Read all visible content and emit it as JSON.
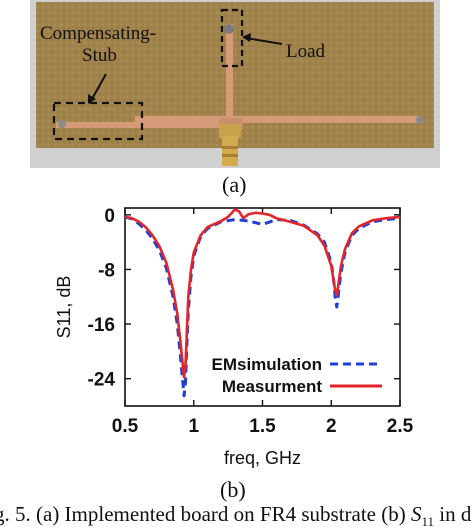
{
  "photo": {
    "labels": {
      "stub_line1": "Compensating-",
      "stub_line2": "Stub",
      "load": "Load"
    },
    "colors": {
      "board": "#a98a52",
      "trace": "#d09070",
      "frame": "#cfcfcf"
    }
  },
  "subfig_a": "(a)",
  "subfig_b": "(b)",
  "chart_data": {
    "type": "line",
    "xlabel": "freq, GHz",
    "ylabel": "S11, dB",
    "xlim": [
      0.5,
      2.5
    ],
    "ylim": [
      -28,
      1
    ],
    "x_ticks": [
      "0.5",
      "1",
      "1.5",
      "2",
      "2.5"
    ],
    "y_ticks": [
      "0",
      "-8",
      "-16",
      "-24"
    ],
    "legend_position": "bottom-right",
    "grid": false,
    "series": [
      {
        "name": "EMsimulation",
        "color": "#1f3fd6",
        "style": "dashed",
        "x": [
          0.5,
          0.55,
          0.6,
          0.65,
          0.7,
          0.75,
          0.8,
          0.85,
          0.88,
          0.9,
          0.92,
          0.93,
          0.94,
          0.95,
          0.96,
          0.98,
          1.0,
          1.05,
          1.1,
          1.2,
          1.3,
          1.4,
          1.5,
          1.6,
          1.7,
          1.8,
          1.9,
          1.95,
          2.0,
          2.02,
          2.03,
          2.04,
          2.05,
          2.07,
          2.1,
          2.15,
          2.2,
          2.3,
          2.4,
          2.5
        ],
        "y": [
          -0.3,
          -0.6,
          -1.3,
          -2.2,
          -3.5,
          -5.2,
          -7.8,
          -12.0,
          -16.0,
          -20.0,
          -24.5,
          -26.5,
          -24.5,
          -19.0,
          -14.0,
          -9.0,
          -6.0,
          -3.2,
          -2.0,
          -1.0,
          -0.7,
          -0.9,
          -1.4,
          -0.7,
          -0.8,
          -1.5,
          -2.8,
          -4.0,
          -7.0,
          -10.0,
          -12.5,
          -13.5,
          -12.0,
          -8.5,
          -5.5,
          -3.0,
          -2.0,
          -1.0,
          -0.7,
          -0.5
        ]
      },
      {
        "name": "Measurment",
        "color": "#e0262b",
        "style": "solid",
        "x": [
          0.5,
          0.55,
          0.6,
          0.65,
          0.7,
          0.75,
          0.8,
          0.85,
          0.88,
          0.9,
          0.92,
          0.93,
          0.94,
          0.95,
          0.96,
          0.98,
          1.0,
          1.05,
          1.1,
          1.2,
          1.25,
          1.3,
          1.33,
          1.36,
          1.4,
          1.45,
          1.5,
          1.55,
          1.6,
          1.7,
          1.8,
          1.9,
          1.95,
          2.0,
          2.02,
          2.03,
          2.04,
          2.05,
          2.07,
          2.1,
          2.15,
          2.2,
          2.3,
          2.4,
          2.5
        ],
        "y": [
          -0.3,
          -0.5,
          -1.0,
          -1.8,
          -3.0,
          -4.6,
          -7.0,
          -11.0,
          -14.5,
          -18.0,
          -22.0,
          -23.8,
          -22.0,
          -17.0,
          -12.0,
          -8.0,
          -5.5,
          -3.0,
          -1.8,
          -0.9,
          -0.3,
          0.8,
          0.5,
          -0.5,
          0.1,
          0.3,
          0.2,
          0.0,
          -0.5,
          -1.0,
          -1.6,
          -3.0,
          -4.5,
          -7.5,
          -10.0,
          -11.2,
          -11.8,
          -10.5,
          -7.5,
          -5.0,
          -2.7,
          -1.7,
          -0.8,
          -0.5,
          -0.3
        ]
      }
    ]
  },
  "caption": {
    "prefix": "g. 5. (a) Implemented board on FR4 substrate (b) ",
    "symbol": "S",
    "symbol_sub": "11",
    "suffix": " in d"
  }
}
